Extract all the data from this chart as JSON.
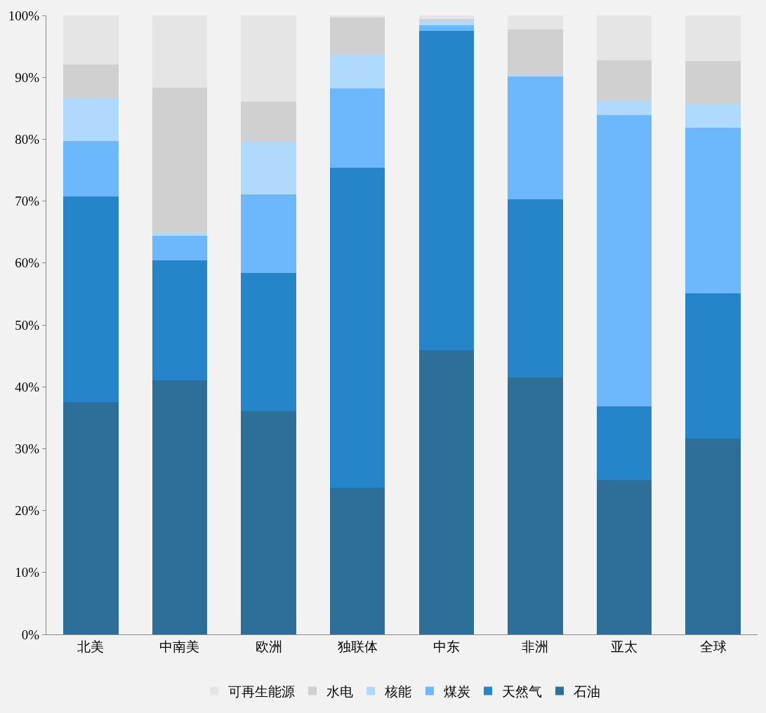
{
  "chart_data": {
    "type": "bar",
    "stacked": true,
    "categories": [
      "北美",
      "中南美",
      "欧洲",
      "独联体",
      "中东",
      "非洲",
      "亚太",
      "全球"
    ],
    "series": [
      {
        "name": "石油",
        "color": "#2e6f99",
        "values": [
          37.5,
          41.1,
          36.0,
          23.7,
          45.9,
          41.5,
          25.0,
          31.6
        ]
      },
      {
        "name": "天然气",
        "color": "#2684c8",
        "values": [
          33.3,
          19.3,
          22.4,
          51.7,
          51.6,
          28.8,
          11.9,
          23.5
        ]
      },
      {
        "name": "煤炭",
        "color": "#6db8fc",
        "values": [
          8.9,
          4.0,
          12.7,
          12.8,
          0.9,
          19.8,
          47.0,
          26.8
        ]
      },
      {
        "name": "核能",
        "color": "#b0dafd",
        "values": [
          7.0,
          0.6,
          8.5,
          5.4,
          0.7,
          0.4,
          2.4,
          3.9
        ]
      },
      {
        "name": "水电",
        "color": "#d0d0d0",
        "values": [
          5.4,
          23.3,
          6.5,
          6.1,
          0.3,
          7.2,
          6.5,
          6.8
        ]
      },
      {
        "name": "可再生能源",
        "color": "#e5e5e5",
        "values": [
          7.9,
          11.7,
          13.9,
          0.3,
          0.6,
          2.3,
          7.2,
          7.4
        ]
      }
    ],
    "ylim": [
      0,
      100
    ],
    "yticks": [
      {
        "value": 0,
        "label": "0%"
      },
      {
        "value": 10,
        "label": "10%"
      },
      {
        "value": 20,
        "label": "20%"
      },
      {
        "value": 30,
        "label": "30%"
      },
      {
        "value": 40,
        "label": "40%"
      },
      {
        "value": 50,
        "label": "50%"
      },
      {
        "value": 60,
        "label": "60%"
      },
      {
        "value": 70,
        "label": "70%"
      },
      {
        "value": 80,
        "label": "80%"
      },
      {
        "value": 90,
        "label": "90%"
      },
      {
        "value": 100,
        "label": "100%"
      }
    ],
    "legend": "bottom",
    "grid": false
  }
}
